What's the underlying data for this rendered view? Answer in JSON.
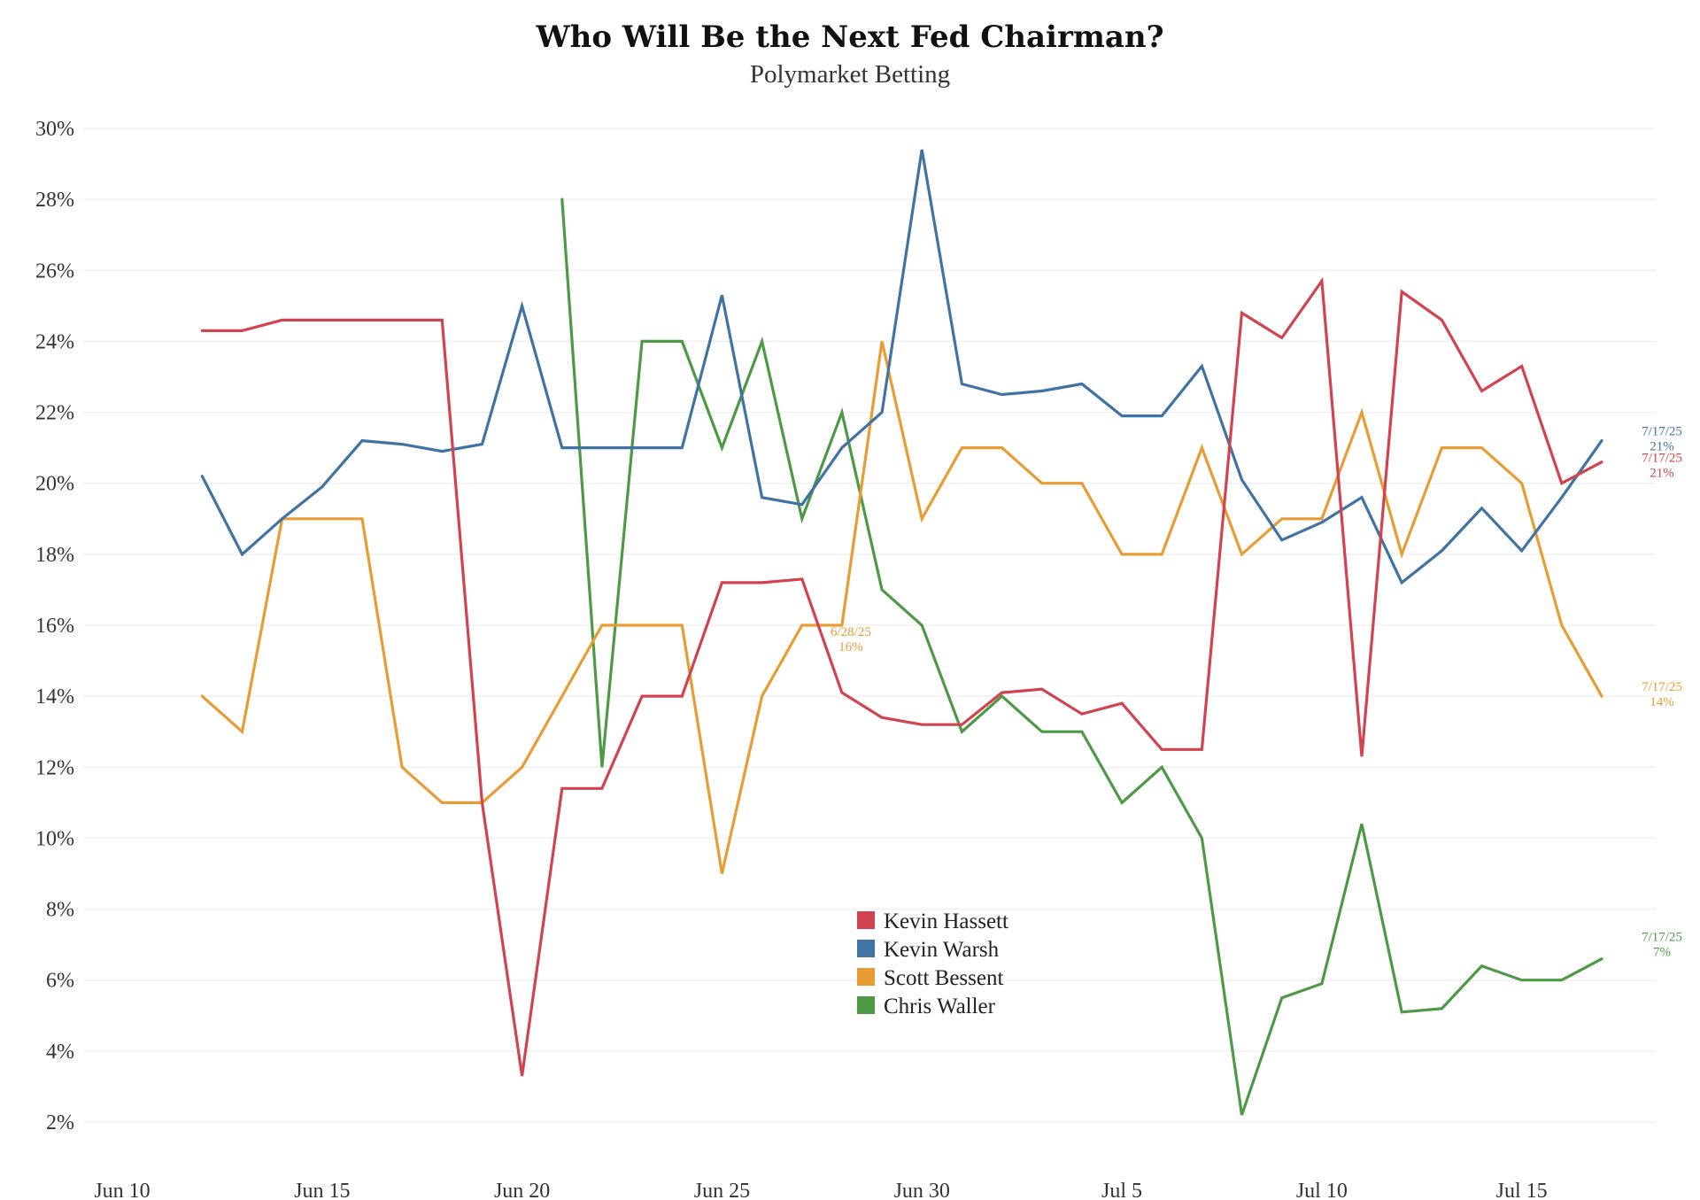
{
  "chart_data": {
    "type": "line",
    "title": "Who Will Be the Next Fed Chairman?",
    "subtitle": "Polymarket Betting",
    "xlabel": "",
    "ylabel": "",
    "ylim": [
      1,
      31
    ],
    "y_ticks": [
      "2%",
      "4%",
      "6%",
      "8%",
      "10%",
      "12%",
      "14%",
      "16%",
      "18%",
      "20%",
      "22%",
      "24%",
      "26%",
      "28%",
      "30%"
    ],
    "x_ticks": [
      "Jun 10",
      "Jun 15",
      "Jun 20",
      "Jun 25",
      "Jun 30",
      "Jul 5",
      "Jul 10",
      "Jul 15"
    ],
    "x": [
      "Jun 12",
      "Jun 13",
      "Jun 14",
      "Jun 15",
      "Jun 16",
      "Jun 17",
      "Jun 18",
      "Jun 19",
      "Jun 20",
      "Jun 21",
      "Jun 22",
      "Jun 23",
      "Jun 24",
      "Jun 25",
      "Jun 26",
      "Jun 27",
      "Jun 28",
      "Jun 29",
      "Jun 30",
      "Jul 1",
      "Jul 2",
      "Jul 3",
      "Jul 4",
      "Jul 5",
      "Jul 6",
      "Jul 7",
      "Jul 8",
      "Jul 9",
      "Jul 10",
      "Jul 11",
      "Jul 12",
      "Jul 13",
      "Jul 14",
      "Jul 15",
      "Jul 16",
      "Jul 17"
    ],
    "grid": true,
    "legend_position": "bottom-center",
    "series": [
      {
        "name": "Kevin Hassett",
        "color": "#d1434e",
        "values": [
          24.3,
          24.3,
          24.6,
          24.6,
          24.6,
          24.6,
          24.6,
          11,
          3.3,
          11.4,
          11.4,
          14,
          14,
          17.2,
          17.2,
          17.3,
          14.1,
          13.4,
          13.2,
          13.2,
          14.1,
          14.2,
          13.5,
          13.8,
          12.5,
          12.5,
          24.8,
          24.1,
          25.7,
          12.3,
          25.4,
          24.6,
          22.6,
          23.3,
          20,
          20.6
        ]
      },
      {
        "name": "Kevin Warsh",
        "color": "#3f73a3",
        "values": [
          20.2,
          18,
          19,
          19.9,
          21.2,
          21.1,
          20.9,
          21.1,
          25,
          21,
          21,
          21,
          21,
          25.3,
          19.6,
          19.4,
          21,
          22,
          29.4,
          22.8,
          22.5,
          22.6,
          22.8,
          21.9,
          21.9,
          23.3,
          20.1,
          18.4,
          18.9,
          19.6,
          17.2,
          18.1,
          19.3,
          18.1,
          19.6,
          21.2
        ]
      },
      {
        "name": "Scott Bessent",
        "color": "#e79d33",
        "values": [
          14,
          13,
          19,
          19,
          19,
          12,
          11,
          11,
          12,
          14,
          16,
          16,
          16,
          9,
          14,
          16,
          16,
          24,
          19,
          21,
          21,
          20,
          20,
          18,
          18,
          21,
          18,
          19,
          19,
          22,
          18,
          21,
          21,
          20,
          16,
          14
        ]
      },
      {
        "name": "Chris Waller",
        "color": "#4c9a43",
        "values": [
          null,
          null,
          null,
          null,
          null,
          null,
          null,
          null,
          null,
          28,
          12,
          24,
          24,
          21,
          24,
          19,
          22,
          17,
          16,
          13,
          14,
          13,
          13,
          11,
          12,
          10,
          2.2,
          5.5,
          5.9,
          10.4,
          5.1,
          5.2,
          6.4,
          6,
          6,
          6.6
        ]
      }
    ],
    "annotations": [
      {
        "date": "6/28/25",
        "value": "16%",
        "series": "Scott Bessent",
        "x": "Jun 28",
        "y": 16
      },
      {
        "date": "7/17/25",
        "value": "21%",
        "series": "Kevin Warsh",
        "x": "Jul 17",
        "y": 21.2
      },
      {
        "date": "7/17/25",
        "value": "21%",
        "series": "Kevin Hassett",
        "x": "Jul 17",
        "y": 20.6
      },
      {
        "date": "7/17/25",
        "value": "14%",
        "series": "Scott Bessent",
        "x": "Jul 17",
        "y": 14
      },
      {
        "date": "7/17/25",
        "value": "7%",
        "series": "Chris Waller",
        "x": "Jul 17",
        "y": 6.6
      }
    ]
  }
}
